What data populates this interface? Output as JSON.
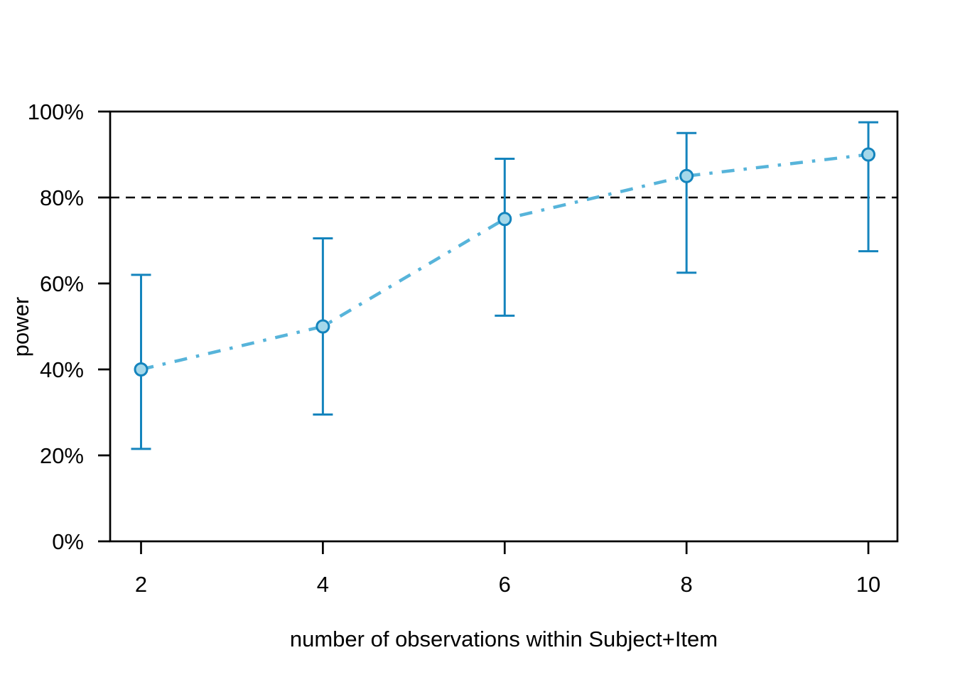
{
  "chart_data": {
    "type": "line",
    "title": "",
    "xlabel": "number of observations within Subject+Item",
    "ylabel": "power",
    "x": [
      2,
      4,
      6,
      8,
      10
    ],
    "series": [
      {
        "name": "power",
        "values": [
          40,
          50,
          75,
          85,
          90
        ],
        "ci_lower": [
          21.5,
          29.5,
          52.5,
          62.5,
          67.5
        ],
        "ci_upper": [
          62,
          70.5,
          89,
          95,
          97.5
        ]
      }
    ],
    "reference_line": {
      "y": 80,
      "style": "dashed",
      "color": "#000000"
    },
    "x_ticks": [
      2,
      4,
      6,
      8,
      10
    ],
    "x_tick_labels": [
      "2",
      "4",
      "6",
      "8",
      "10"
    ],
    "y_ticks": [
      0,
      20,
      40,
      60,
      80,
      100
    ],
    "y_tick_labels": [
      "0%",
      "20%",
      "40%",
      "60%",
      "80%",
      "100%"
    ],
    "xlim": [
      1.66,
      10.32
    ],
    "ylim": [
      0,
      100
    ],
    "grid": false,
    "legend_position": "none",
    "marker": "circle",
    "line_style": "dash-dot",
    "colors": {
      "line": "#57b4da",
      "error_bar": "#1484bd",
      "marker_fill": "#a5d8ea",
      "marker_stroke": "#1484bd",
      "axis": "#000000",
      "text": "#000000",
      "background": "#ffffff"
    }
  }
}
